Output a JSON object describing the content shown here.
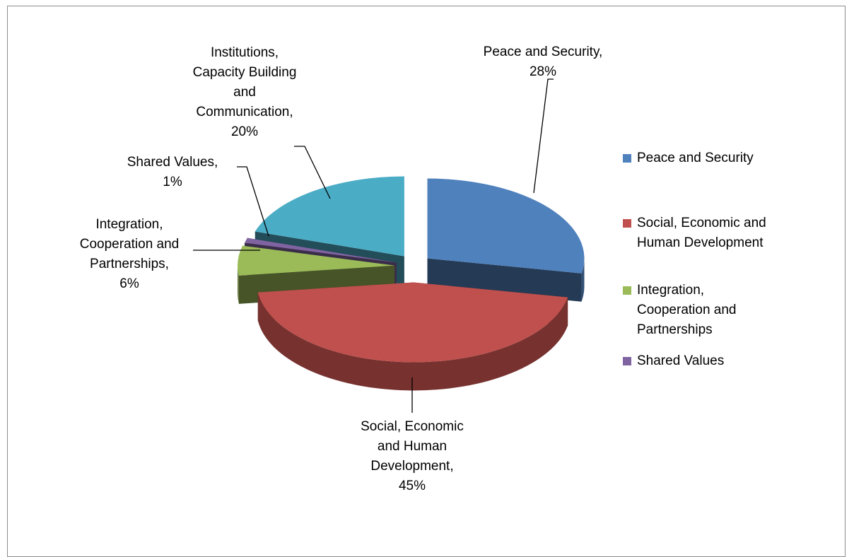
{
  "chart_data": {
    "type": "pie",
    "style": "3d-exploded",
    "slices": [
      {
        "name": "Peace and Security",
        "value": 28,
        "label_lines": [
          "Peace and Security,",
          "28%"
        ],
        "color": "#4F81BD"
      },
      {
        "name": "Social, Economic and Human Development",
        "value": 45,
        "label_lines": [
          "Social, Economic",
          "and Human",
          "Development,",
          "45%"
        ],
        "color": "#C0504D"
      },
      {
        "name": "Integration, Cooperation and Partnerships",
        "value": 6,
        "label_lines": [
          "Integration,",
          "Cooperation and",
          "Partnerships,",
          "6%"
        ],
        "color": "#9BBB59"
      },
      {
        "name": "Shared Values",
        "value": 1,
        "label_lines": [
          "Shared Values,",
          "1%"
        ],
        "color": "#8064A2"
      },
      {
        "name": "Institutions, Capacity Building and Communication",
        "value": 20,
        "label_lines": [
          "Institutions,",
          "Capacity Building",
          "and",
          "Communication,",
          "20%"
        ],
        "color": "#4BACC6"
      }
    ],
    "legend": {
      "position": "right",
      "entries": [
        {
          "lines": [
            "Peace and Security"
          ],
          "color": "#4F81BD"
        },
        {
          "lines": [
            "Social, Economic and",
            "Human Development"
          ],
          "color": "#C0504D"
        },
        {
          "lines": [
            "Integration,",
            "Cooperation and",
            "Partnerships"
          ],
          "color": "#9BBB59"
        },
        {
          "lines": [
            "Shared Values"
          ],
          "color": "#8064A2"
        }
      ]
    }
  }
}
